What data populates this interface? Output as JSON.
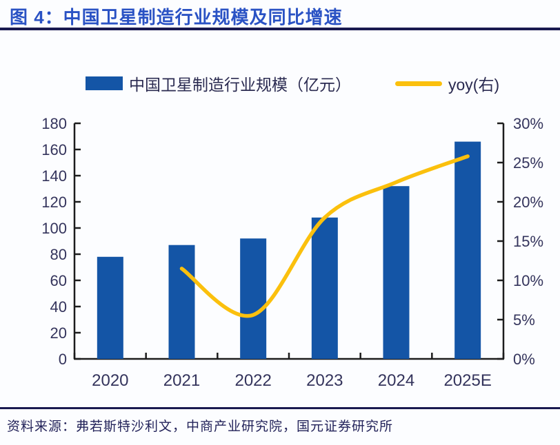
{
  "header": {
    "title": "图 4：中国卫星制造行业规模及同比增速"
  },
  "legend": {
    "bar_label": "中国卫星制造行业规模（亿元）",
    "line_label": "yoy(右)"
  },
  "chart_data": {
    "type": "bar",
    "subtype": "bar+line dual-axis combo",
    "title": "中国卫星制造行业规模及同比增速",
    "categories": [
      "2020",
      "2021",
      "2022",
      "2023",
      "2024",
      "2025E"
    ],
    "series": [
      {
        "name": "中国卫星制造行业规模（亿元）",
        "type": "bar",
        "axis": "left",
        "color": "#1455A6",
        "values": [
          78,
          87,
          92,
          108,
          132,
          166
        ]
      },
      {
        "name": "yoy(右)",
        "type": "line",
        "axis": "right",
        "color": "#FBC00D",
        "values": [
          null,
          11.5,
          5.6,
          18,
          22.5,
          25.8
        ]
      }
    ],
    "left_axis": {
      "min": 0,
      "max": 180,
      "step": 20,
      "ticks": [
        "0",
        "20",
        "40",
        "60",
        "80",
        "100",
        "120",
        "140",
        "160",
        "180"
      ]
    },
    "right_axis": {
      "min": 0,
      "max": 30,
      "step": 5,
      "ticks": [
        "0%",
        "5%",
        "10%",
        "15%",
        "20%",
        "25%",
        "30%"
      ]
    },
    "grid": false,
    "legend_position": "top-center"
  },
  "footer": {
    "source": "资料来源：弗若斯特沙利文，中商产业研究院，国元证券研究所"
  },
  "colors": {
    "bar": "#1455A6",
    "line": "#FBC00D",
    "axis": "#1c1c1c",
    "tick_text": "#34345c",
    "title": "#2A52C4",
    "rule": "#191950"
  }
}
